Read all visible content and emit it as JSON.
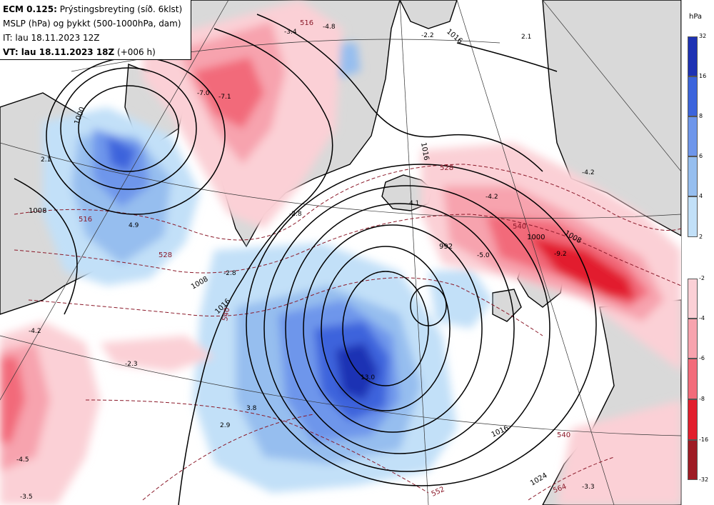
{
  "header": {
    "line1_model": "ECM 0.125:",
    "line1_field": "Prýstingsbreyting (síð. 6klst)",
    "line2": "MSLP (hPa) og þykkt (500-1000hPa, dam)",
    "line3": "IT: lau 18.11.2023 12Z",
    "line4_vt": "VT: lau 18.11.2023 18Z",
    "line4_step": "(+006 h)"
  },
  "legend": {
    "unit": "hPa",
    "negative_ticks": [
      "32",
      "16",
      "8",
      "6",
      "4",
      "2"
    ],
    "positive_ticks": [
      "-2",
      "-4",
      "-6",
      "-8",
      "-16",
      "-32"
    ],
    "negative_colors": [
      "#1e32b4",
      "#3c64dc",
      "#6e96eb",
      "#96beef",
      "#c2e0f8"
    ],
    "positive_colors": [
      "#fbd0d6",
      "#f7a3ae",
      "#f26b7a",
      "#e21e2d",
      "#9e1b24"
    ]
  },
  "map": {
    "isobar_labels": [
      "1016",
      "1016",
      "1008",
      "1008",
      "992",
      "1000",
      "1008",
      "1016",
      "1024",
      "1000",
      "1016"
    ],
    "thickness_labels": [
      "516",
      "516",
      "528",
      "528",
      "540",
      "540",
      "540",
      "552",
      "564"
    ],
    "tendency_values": [
      "-3.4",
      "-4.8",
      "-2.2",
      "-7.0",
      "-7.1",
      "2.1",
      "-4.2",
      "-4.2",
      "-2.8",
      "-5.0",
      "-9.2",
      "4.1",
      "4.9",
      "-2.8",
      "-2.3",
      "13.0",
      "3.8",
      "2.9",
      "-4.5",
      "-3.5",
      "-3.3",
      "2.1",
      "-4.2"
    ],
    "colors": {
      "land": "#d9d9d9",
      "isobar": "#000000",
      "thickness": "#8b1a2a"
    }
  }
}
